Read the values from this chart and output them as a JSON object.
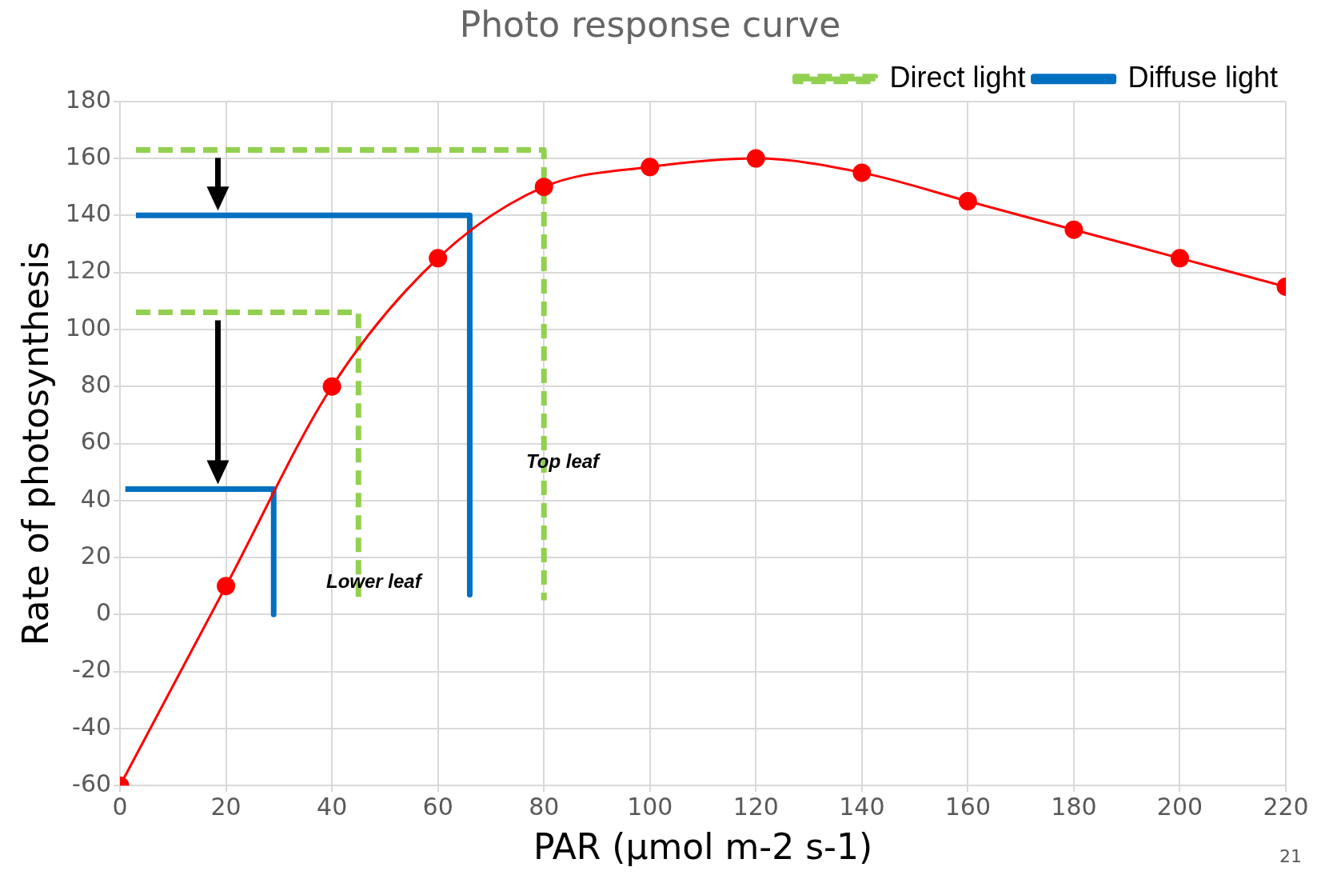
{
  "chart_data": {
    "type": "line",
    "title": "Photo response curve",
    "xlabel": "PAR (µmol m-2 s-1)",
    "ylabel": "Rate of photosynthesis",
    "xlim": [
      0,
      220
    ],
    "xticks": [
      0,
      20,
      40,
      60,
      80,
      100,
      120,
      140,
      160,
      180,
      200,
      220
    ],
    "ylim": [
      -60,
      180
    ],
    "yticks": [
      -60,
      -40,
      -20,
      0,
      20,
      40,
      60,
      80,
      100,
      120,
      140,
      160,
      180
    ],
    "grid": true,
    "legend": "top right",
    "series": [
      {
        "color": "#ff0000",
        "marker": "circle",
        "line_style": "solid",
        "x": [
          0,
          20,
          40,
          60,
          80,
          100,
          120,
          140,
          160,
          180,
          200,
          220
        ],
        "values": [
          -60,
          10,
          80,
          125,
          150,
          157,
          160,
          155,
          145,
          135,
          125,
          115
        ]
      },
      {
        "name": "Direct light",
        "color": "#92d050",
        "marker": "none",
        "line_style": "dashed",
        "x": [
          3,
          80,
          80,
          null,
          3,
          45,
          45
        ],
        "values": [
          163,
          163,
          5,
          null,
          106,
          106,
          5
        ]
      },
      {
        "name": "Diffuse light",
        "color": "#0070c0",
        "marker": "none",
        "line_style": "solid",
        "x": [
          3,
          66,
          66,
          null,
          1,
          29,
          29
        ],
        "values": [
          140,
          140,
          7,
          null,
          44,
          44,
          0
        ]
      }
    ],
    "annotations": [
      "Top leaf",
      "Lower leaf",
      "21"
    ]
  }
}
